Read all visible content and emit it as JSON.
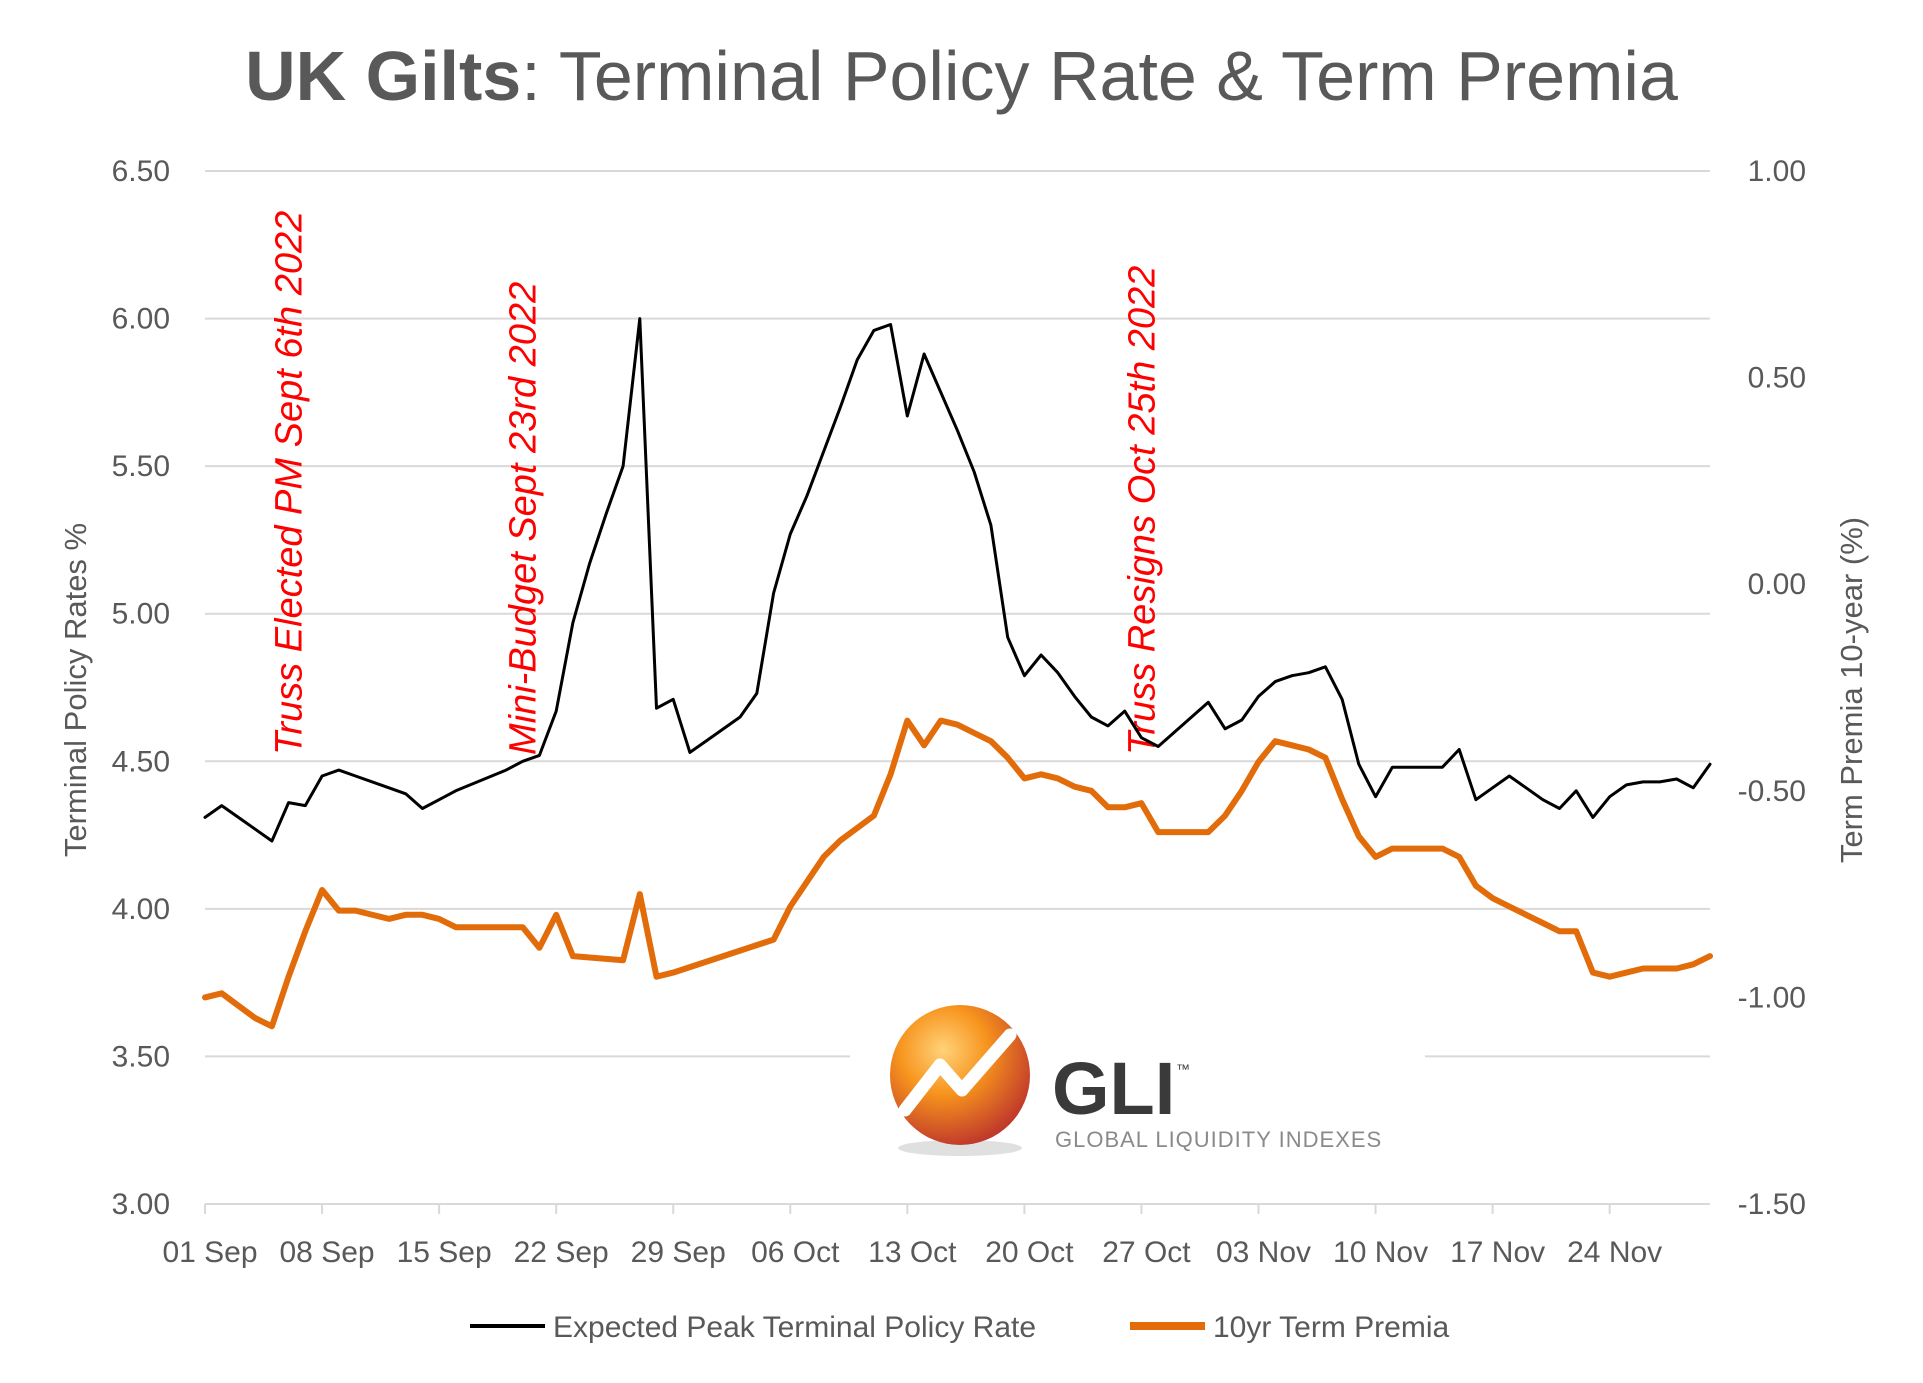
{
  "title": {
    "bold": "UK Gilts",
    "rest": ": Terminal Policy Rate & Term Premia"
  },
  "logo": {
    "name": "GLI",
    "tm": "™",
    "subtitle": "GLOBAL LIQUIDITY INDEXES"
  },
  "colors": {
    "policy_rate": "#000000",
    "term_premia": "#e36c0a",
    "annotation": "#ff0000",
    "grid": "#d9d9d9",
    "text": "#595959"
  },
  "chart_data": {
    "type": "line",
    "title": "UK Gilts: Terminal Policy Rate & Term Premia",
    "x_ticks": [
      "01 Sep",
      "08 Sep",
      "15 Sep",
      "22 Sep",
      "29 Sep",
      "06 Oct",
      "13 Oct",
      "20 Oct",
      "27 Oct",
      "03 Nov",
      "10 Nov",
      "17 Nov",
      "24 Nov"
    ],
    "x_range_days": [
      0,
      90
    ],
    "y_left": {
      "label": "Terminal Policy Rates %",
      "lim": [
        3.0,
        6.5
      ],
      "ticks": [
        "3.00",
        "3.50",
        "4.00",
        "4.50",
        "5.00",
        "5.50",
        "6.00",
        "6.50"
      ]
    },
    "y_right": {
      "label": "Term Premia 10-year (%)",
      "lim": [
        -1.5,
        1.0
      ],
      "ticks": [
        "-1.50",
        "-1.00",
        "-0.50",
        "0.00",
        "0.50",
        "1.00"
      ]
    },
    "grid": true,
    "legend_position": "bottom",
    "annotations": [
      {
        "text": "Truss Elected PM Sept 6th 2022",
        "day": 5
      },
      {
        "text": "Mini-Budget Sept 23rd 2022",
        "day": 19
      },
      {
        "text": "Truss Resigns Oct 25th 2022",
        "day": 56
      }
    ],
    "series": [
      {
        "name": "Expected Peak Terminal Policy Rate",
        "axis": "left",
        "x_days": [
          0,
          1,
          2,
          3,
          4,
          5,
          6,
          7,
          8,
          9,
          11,
          12,
          13,
          14,
          15,
          18,
          19,
          20,
          21,
          22,
          23,
          24,
          25,
          26,
          27,
          28,
          29,
          30,
          32,
          33,
          34,
          35,
          36,
          37,
          38,
          39,
          40,
          41,
          42,
          43,
          44,
          45,
          46,
          47,
          48,
          49,
          50,
          51,
          52,
          53,
          54,
          55,
          56,
          57,
          58,
          59,
          60,
          61,
          62,
          63,
          64,
          65,
          66,
          67,
          68,
          69,
          70,
          71,
          72,
          73,
          74,
          75,
          76,
          77,
          78,
          79,
          80,
          81,
          82,
          83,
          84,
          85,
          86,
          87,
          88,
          89,
          90
        ],
        "values": [
          4.31,
          4.35,
          4.31,
          4.27,
          4.23,
          4.36,
          4.35,
          4.45,
          4.47,
          4.45,
          4.41,
          4.39,
          4.34,
          4.37,
          4.4,
          4.47,
          4.5,
          4.52,
          4.67,
          4.97,
          5.17,
          5.34,
          5.5,
          6.0,
          4.68,
          4.71,
          4.53,
          4.57,
          4.65,
          4.73,
          5.07,
          5.27,
          5.4,
          5.55,
          5.7,
          5.86,
          5.96,
          5.98,
          5.67,
          5.88,
          5.75,
          5.62,
          5.48,
          5.3,
          4.92,
          4.79,
          4.86,
          4.8,
          4.72,
          4.65,
          4.62,
          4.67,
          4.58,
          4.55,
          4.6,
          4.65,
          4.7,
          4.61,
          4.64,
          4.72,
          4.77,
          4.79,
          4.8,
          4.82,
          4.71,
          4.49,
          4.38,
          4.48,
          4.48,
          4.48,
          4.48,
          4.54,
          4.37,
          4.41,
          4.45,
          4.41,
          4.37,
          4.34,
          4.4,
          4.31,
          4.38,
          4.42,
          4.43,
          4.43,
          4.44,
          4.41,
          4.49
        ]
      },
      {
        "name": "10yr Term Premia",
        "axis": "right",
        "x_days": [
          0,
          1,
          2,
          3,
          4,
          5,
          6,
          7,
          8,
          9,
          11,
          12,
          13,
          14,
          15,
          18,
          19,
          20,
          21,
          22,
          25,
          26,
          27,
          28,
          34,
          35,
          36,
          37,
          38,
          39,
          40,
          41,
          42,
          43,
          44,
          45,
          46,
          47,
          48,
          49,
          50,
          51,
          52,
          53,
          54,
          55,
          56,
          57,
          58,
          59,
          60,
          61,
          62,
          63,
          64,
          65,
          66,
          67,
          68,
          69,
          70,
          71,
          72,
          73,
          74,
          75,
          76,
          77,
          78,
          79,
          80,
          81,
          82,
          83,
          84,
          85,
          86,
          87,
          88,
          89,
          90
        ],
        "values": [
          -1.0,
          -0.99,
          -1.02,
          -1.05,
          -1.07,
          -0.95,
          -0.84,
          -0.74,
          -0.79,
          -0.79,
          -0.81,
          -0.8,
          -0.8,
          -0.81,
          -0.83,
          -0.83,
          -0.83,
          -0.88,
          -0.8,
          -0.9,
          -0.91,
          -0.75,
          -0.95,
          -0.94,
          -0.86,
          -0.78,
          -0.72,
          -0.66,
          -0.62,
          -0.59,
          -0.56,
          -0.46,
          -0.33,
          -0.39,
          -0.33,
          -0.34,
          -0.36,
          -0.38,
          -0.42,
          -0.47,
          -0.46,
          -0.47,
          -0.49,
          -0.5,
          -0.54,
          -0.54,
          -0.53,
          -0.6,
          -0.6,
          -0.6,
          -0.6,
          -0.56,
          -0.5,
          -0.43,
          -0.38,
          -0.39,
          -0.4,
          -0.42,
          -0.52,
          -0.61,
          -0.66,
          -0.64,
          -0.64,
          -0.64,
          -0.64,
          -0.66,
          -0.73,
          -0.76,
          -0.78,
          -0.8,
          -0.82,
          -0.84,
          -0.84,
          -0.94,
          -0.95,
          -0.94,
          -0.93,
          -0.93,
          -0.93,
          -0.92,
          -0.9
        ]
      }
    ]
  }
}
